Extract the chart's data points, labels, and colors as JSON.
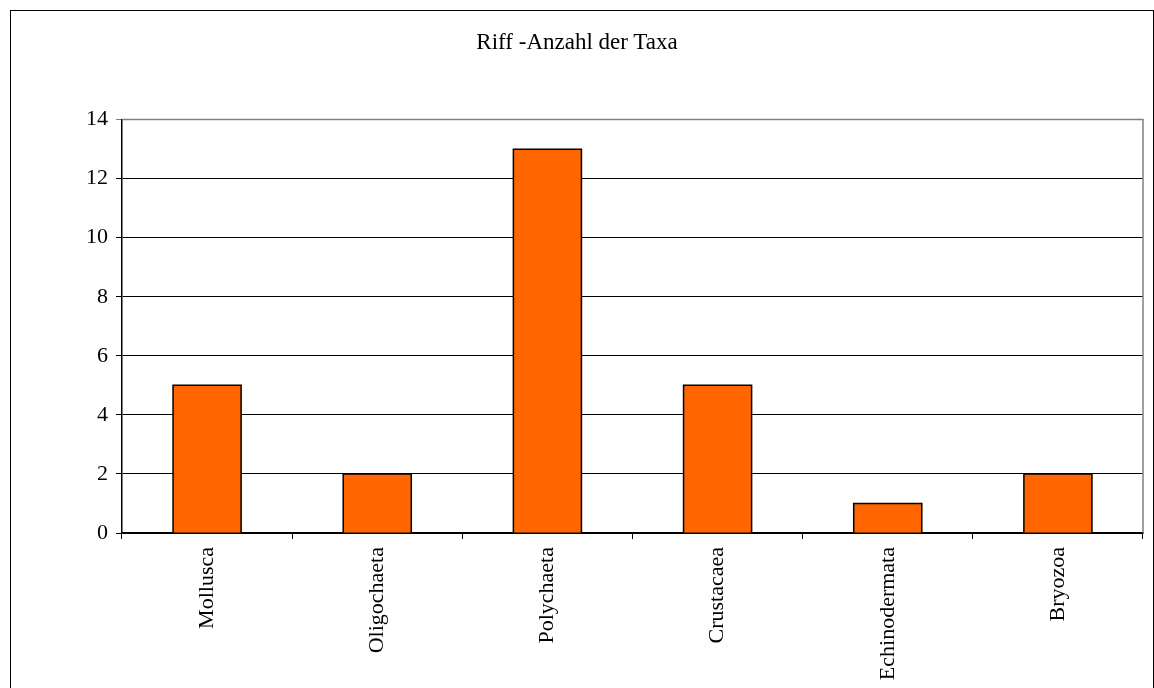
{
  "chart_data": {
    "type": "bar",
    "title": "Riff -Anzahl der Taxa",
    "categories": [
      "Mollusca",
      "Oligochaeta",
      "Polychaeta",
      "Crustacaea",
      "Echinodermata",
      "Bryozoa"
    ],
    "values": [
      5,
      2,
      13,
      5,
      1,
      2
    ],
    "color": "#ff6600",
    "ylim": [
      0,
      14
    ],
    "yticks": [
      0,
      2,
      4,
      6,
      8,
      10,
      12,
      14
    ],
    "grid": "y"
  }
}
